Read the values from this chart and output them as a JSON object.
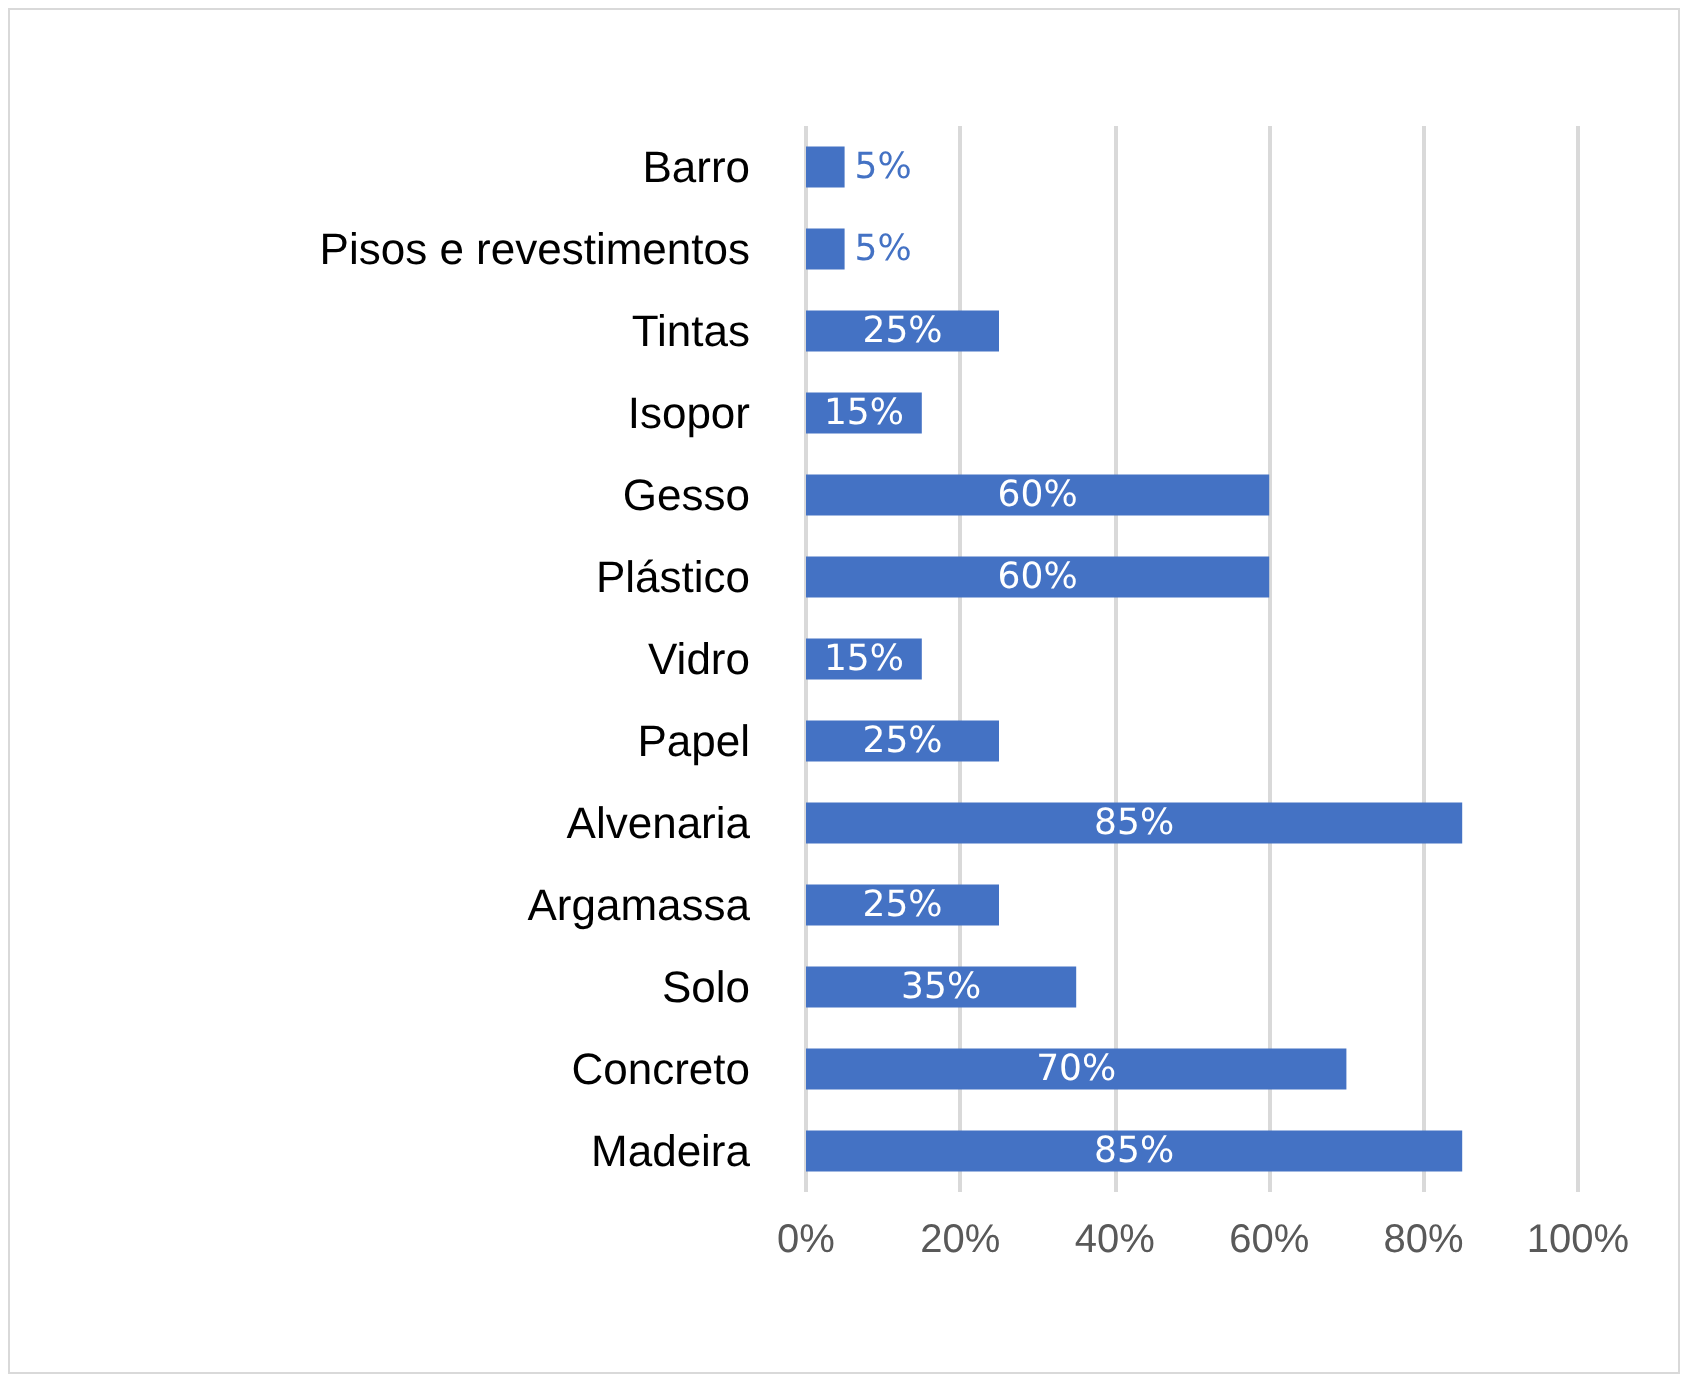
{
  "chart_data": {
    "type": "bar",
    "orientation": "horizontal",
    "categories": [
      "Barro",
      "Pisos e revestimentos",
      "Tintas",
      "Isopor",
      "Gesso",
      "Plástico",
      "Vidro",
      "Papel",
      "Alvenaria",
      "Argamassa",
      "Solo",
      "Concreto",
      "Madeira"
    ],
    "values": [
      5,
      5,
      25,
      15,
      60,
      60,
      15,
      25,
      85,
      25,
      35,
      70,
      85
    ],
    "value_labels": [
      "5%",
      "5%",
      "25%",
      "15%",
      "60%",
      "60%",
      "15%",
      "25%",
      "85%",
      "25%",
      "35%",
      "70%",
      "85%"
    ],
    "color": "#4472c4",
    "xlim": [
      0,
      100
    ],
    "xticks": [
      {
        "value": 0,
        "label": "0%"
      },
      {
        "value": 20,
        "label": "20%"
      },
      {
        "value": 40,
        "label": "40%"
      },
      {
        "value": 60,
        "label": "60%"
      },
      {
        "value": 80,
        "label": "80%"
      },
      {
        "value": 100,
        "label": "100%"
      }
    ],
    "grid": "x"
  }
}
